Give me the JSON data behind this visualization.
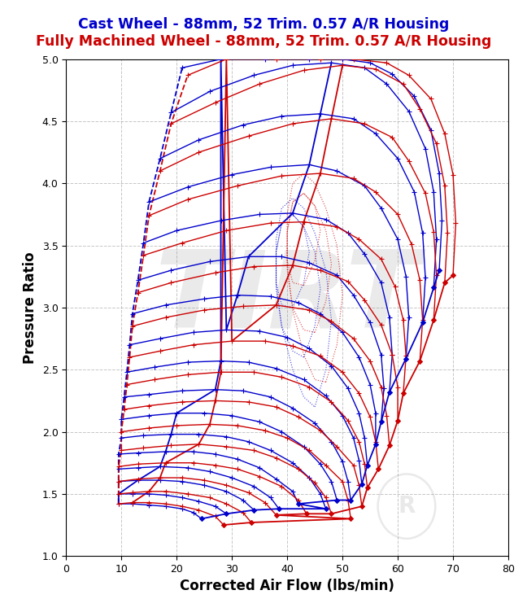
{
  "title_cast": "Cast Wheel - 88mm, 52 Trim. 0.57 A/R Housing",
  "title_billet": "Fully Machined Wheel - 88mm, 52 Trim. 0.57 A/R Housing",
  "xlabel": "Corrected Air Flow (lbs/min)",
  "ylabel": "Pressure Ratio",
  "xlim": [
    0,
    80
  ],
  "ylim": [
    1.0,
    5.0
  ],
  "xticks": [
    0,
    10,
    20,
    30,
    40,
    50,
    60,
    70,
    80
  ],
  "yticks": [
    1.0,
    1.5,
    2.0,
    2.5,
    3.0,
    3.5,
    4.0,
    4.5,
    5.0
  ],
  "cast_color": "#0000cc",
  "billet_color": "#cc0000",
  "background_color": "#ffffff",
  "watermark_color": "#c8c8c8",
  "title_fontsize": 12.5,
  "axis_label_fontsize": 12,
  "cast_speed_lines": [
    [
      [
        9.5,
        1.42
      ],
      [
        12,
        1.42
      ],
      [
        15,
        1.41
      ],
      [
        18,
        1.4
      ],
      [
        21,
        1.38
      ],
      [
        23,
        1.35
      ],
      [
        24.5,
        1.3
      ]
    ],
    [
      [
        9.5,
        1.5
      ],
      [
        12,
        1.5
      ],
      [
        15,
        1.5
      ],
      [
        18,
        1.49
      ],
      [
        21,
        1.47
      ],
      [
        24,
        1.44
      ],
      [
        27,
        1.4
      ],
      [
        29,
        1.34
      ]
    ],
    [
      [
        9.5,
        1.6
      ],
      [
        13,
        1.61
      ],
      [
        17,
        1.61
      ],
      [
        21,
        1.6
      ],
      [
        25,
        1.57
      ],
      [
        29,
        1.52
      ],
      [
        32,
        1.45
      ],
      [
        34,
        1.37
      ]
    ],
    [
      [
        9.5,
        1.7
      ],
      [
        13,
        1.71
      ],
      [
        17,
        1.72
      ],
      [
        22,
        1.71
      ],
      [
        26,
        1.68
      ],
      [
        30,
        1.63
      ],
      [
        34,
        1.56
      ],
      [
        37,
        1.47
      ],
      [
        38.5,
        1.38
      ]
    ],
    [
      [
        9.5,
        1.82
      ],
      [
        13,
        1.83
      ],
      [
        18,
        1.84
      ],
      [
        23,
        1.84
      ],
      [
        27,
        1.82
      ],
      [
        31,
        1.78
      ],
      [
        35,
        1.71
      ],
      [
        38,
        1.62
      ],
      [
        41,
        1.52
      ],
      [
        42,
        1.42
      ]
    ],
    [
      [
        10,
        1.95
      ],
      [
        14,
        1.97
      ],
      [
        19,
        1.98
      ],
      [
        24,
        1.98
      ],
      [
        29,
        1.96
      ],
      [
        33,
        1.92
      ],
      [
        37,
        1.85
      ],
      [
        41,
        1.75
      ],
      [
        44,
        1.63
      ],
      [
        46,
        1.5
      ],
      [
        47,
        1.38
      ]
    ],
    [
      [
        10,
        2.1
      ],
      [
        15,
        2.13
      ],
      [
        20,
        2.15
      ],
      [
        25,
        2.15
      ],
      [
        30,
        2.13
      ],
      [
        35,
        2.08
      ],
      [
        39,
        2.0
      ],
      [
        43,
        1.88
      ],
      [
        46,
        1.74
      ],
      [
        48,
        1.6
      ],
      [
        49,
        1.45
      ]
    ],
    [
      [
        10.5,
        2.28
      ],
      [
        15,
        2.3
      ],
      [
        21,
        2.33
      ],
      [
        27,
        2.34
      ],
      [
        32,
        2.33
      ],
      [
        37,
        2.28
      ],
      [
        41,
        2.19
      ],
      [
        45,
        2.07
      ],
      [
        48,
        1.92
      ],
      [
        50,
        1.76
      ],
      [
        51,
        1.6
      ],
      [
        51.5,
        1.45
      ]
    ],
    [
      [
        11,
        2.48
      ],
      [
        16,
        2.52
      ],
      [
        22,
        2.56
      ],
      [
        28,
        2.57
      ],
      [
        33,
        2.56
      ],
      [
        38,
        2.51
      ],
      [
        43,
        2.42
      ],
      [
        47,
        2.29
      ],
      [
        50,
        2.13
      ],
      [
        52,
        1.95
      ],
      [
        53,
        1.77
      ],
      [
        53.5,
        1.58
      ]
    ],
    [
      [
        11.5,
        2.7
      ],
      [
        17,
        2.75
      ],
      [
        23,
        2.8
      ],
      [
        29,
        2.82
      ],
      [
        35,
        2.81
      ],
      [
        40,
        2.76
      ],
      [
        44,
        2.67
      ],
      [
        48,
        2.53
      ],
      [
        51,
        2.35
      ],
      [
        53,
        2.15
      ],
      [
        54,
        1.95
      ],
      [
        54.5,
        1.73
      ]
    ],
    [
      [
        12,
        2.95
      ],
      [
        18,
        3.02
      ],
      [
        25,
        3.07
      ],
      [
        31,
        3.1
      ],
      [
        37,
        3.09
      ],
      [
        42,
        3.04
      ],
      [
        46,
        2.95
      ],
      [
        50,
        2.8
      ],
      [
        53,
        2.6
      ],
      [
        55,
        2.38
      ],
      [
        56,
        2.15
      ],
      [
        56,
        1.9
      ]
    ],
    [
      [
        13,
        3.22
      ],
      [
        19,
        3.3
      ],
      [
        26,
        3.37
      ],
      [
        33,
        3.41
      ],
      [
        39,
        3.41
      ],
      [
        44,
        3.36
      ],
      [
        49,
        3.26
      ],
      [
        52,
        3.1
      ],
      [
        55,
        2.88
      ],
      [
        57,
        2.62
      ],
      [
        57.5,
        2.35
      ],
      [
        57,
        2.08
      ]
    ],
    [
      [
        14,
        3.52
      ],
      [
        20,
        3.62
      ],
      [
        28,
        3.7
      ],
      [
        35,
        3.75
      ],
      [
        41,
        3.76
      ],
      [
        47,
        3.71
      ],
      [
        51,
        3.6
      ],
      [
        54,
        3.43
      ],
      [
        57,
        3.2
      ],
      [
        58.5,
        2.92
      ],
      [
        59,
        2.62
      ],
      [
        58.5,
        2.32
      ]
    ],
    [
      [
        15,
        3.85
      ],
      [
        22,
        3.97
      ],
      [
        30,
        4.07
      ],
      [
        37,
        4.13
      ],
      [
        44,
        4.15
      ],
      [
        49,
        4.1
      ],
      [
        54,
        3.98
      ],
      [
        57,
        3.8
      ],
      [
        60,
        3.55
      ],
      [
        61.5,
        3.25
      ],
      [
        62,
        2.92
      ],
      [
        61.5,
        2.59
      ]
    ],
    [
      [
        17,
        4.2
      ],
      [
        24,
        4.35
      ],
      [
        32,
        4.47
      ],
      [
        39,
        4.54
      ],
      [
        46,
        4.56
      ],
      [
        52,
        4.52
      ],
      [
        56,
        4.4
      ],
      [
        60,
        4.2
      ],
      [
        63,
        3.93
      ],
      [
        64.5,
        3.6
      ],
      [
        65,
        3.24
      ],
      [
        64.5,
        2.88
      ]
    ],
    [
      [
        19,
        4.57
      ],
      [
        26,
        4.74
      ],
      [
        34,
        4.87
      ],
      [
        41,
        4.95
      ],
      [
        48,
        4.97
      ],
      [
        54,
        4.93
      ],
      [
        58,
        4.8
      ],
      [
        62,
        4.58
      ],
      [
        65,
        4.28
      ],
      [
        66.5,
        3.93
      ],
      [
        67,
        3.55
      ],
      [
        66.5,
        3.16
      ]
    ],
    [
      [
        21,
        4.93
      ],
      [
        28,
        5.0
      ],
      [
        36,
        5.0
      ],
      [
        44,
        5.0
      ],
      [
        50,
        5.0
      ],
      [
        55,
        4.97
      ],
      [
        59,
        4.88
      ],
      [
        63,
        4.7
      ],
      [
        66,
        4.43
      ],
      [
        67.5,
        4.08
      ],
      [
        68,
        3.7
      ],
      [
        67.5,
        3.3
      ]
    ]
  ],
  "billet_speed_lines": [
    [
      [
        9.5,
        1.42
      ],
      [
        12,
        1.43
      ],
      [
        15,
        1.43
      ],
      [
        18,
        1.42
      ],
      [
        21,
        1.4
      ],
      [
        24,
        1.37
      ],
      [
        27,
        1.32
      ],
      [
        28.5,
        1.25
      ]
    ],
    [
      [
        9.5,
        1.5
      ],
      [
        12,
        1.51
      ],
      [
        15,
        1.52
      ],
      [
        18,
        1.52
      ],
      [
        22,
        1.5
      ],
      [
        26,
        1.47
      ],
      [
        29,
        1.42
      ],
      [
        32,
        1.35
      ],
      [
        33.5,
        1.27
      ]
    ],
    [
      [
        9.5,
        1.6
      ],
      [
        13,
        1.62
      ],
      [
        17,
        1.63
      ],
      [
        21,
        1.63
      ],
      [
        25,
        1.61
      ],
      [
        29,
        1.57
      ],
      [
        33,
        1.51
      ],
      [
        36,
        1.43
      ],
      [
        38,
        1.33
      ]
    ],
    [
      [
        9.5,
        1.72
      ],
      [
        13,
        1.74
      ],
      [
        18,
        1.75
      ],
      [
        23,
        1.75
      ],
      [
        27,
        1.73
      ],
      [
        31,
        1.7
      ],
      [
        35,
        1.64
      ],
      [
        39,
        1.56
      ],
      [
        42,
        1.45
      ],
      [
        43.5,
        1.34
      ]
    ],
    [
      [
        10,
        1.85
      ],
      [
        14,
        1.87
      ],
      [
        19,
        1.89
      ],
      [
        24,
        1.9
      ],
      [
        29,
        1.88
      ],
      [
        34,
        1.85
      ],
      [
        38,
        1.79
      ],
      [
        42,
        1.7
      ],
      [
        45,
        1.59
      ],
      [
        47,
        1.47
      ],
      [
        48,
        1.34
      ]
    ],
    [
      [
        10,
        2.0
      ],
      [
        15,
        2.03
      ],
      [
        20,
        2.05
      ],
      [
        26,
        2.06
      ],
      [
        31,
        2.05
      ],
      [
        36,
        2.01
      ],
      [
        40,
        1.95
      ],
      [
        44,
        1.85
      ],
      [
        47,
        1.73
      ],
      [
        50,
        1.6
      ],
      [
        51,
        1.45
      ],
      [
        51.5,
        1.3
      ]
    ],
    [
      [
        10.5,
        2.18
      ],
      [
        15,
        2.21
      ],
      [
        21,
        2.24
      ],
      [
        27,
        2.25
      ],
      [
        33,
        2.24
      ],
      [
        38,
        2.2
      ],
      [
        42,
        2.12
      ],
      [
        46,
        2.01
      ],
      [
        49,
        1.88
      ],
      [
        52,
        1.73
      ],
      [
        53,
        1.57
      ],
      [
        53.5,
        1.4
      ]
    ],
    [
      [
        11,
        2.38
      ],
      [
        16,
        2.42
      ],
      [
        22,
        2.46
      ],
      [
        28,
        2.48
      ],
      [
        34,
        2.48
      ],
      [
        39,
        2.44
      ],
      [
        44,
        2.36
      ],
      [
        48,
        2.24
      ],
      [
        51,
        2.09
      ],
      [
        53,
        1.92
      ],
      [
        54,
        1.74
      ],
      [
        54.5,
        1.55
      ]
    ],
    [
      [
        11.5,
        2.6
      ],
      [
        17,
        2.65
      ],
      [
        23,
        2.7
      ],
      [
        30,
        2.73
      ],
      [
        36,
        2.73
      ],
      [
        41,
        2.69
      ],
      [
        46,
        2.61
      ],
      [
        50,
        2.48
      ],
      [
        53,
        2.31
      ],
      [
        55,
        2.12
      ],
      [
        56,
        1.92
      ],
      [
        56.5,
        1.7
      ]
    ],
    [
      [
        12,
        2.85
      ],
      [
        18,
        2.92
      ],
      [
        25,
        2.98
      ],
      [
        32,
        3.01
      ],
      [
        38,
        3.02
      ],
      [
        44,
        2.98
      ],
      [
        48,
        2.89
      ],
      [
        52,
        2.75
      ],
      [
        55,
        2.57
      ],
      [
        57,
        2.36
      ],
      [
        58,
        2.13
      ],
      [
        58.5,
        1.89
      ]
    ],
    [
      [
        13,
        3.12
      ],
      [
        19,
        3.2
      ],
      [
        27,
        3.28
      ],
      [
        34,
        3.33
      ],
      [
        41,
        3.34
      ],
      [
        46,
        3.3
      ],
      [
        51,
        3.21
      ],
      [
        54,
        3.06
      ],
      [
        57,
        2.86
      ],
      [
        59,
        2.62
      ],
      [
        60,
        2.36
      ],
      [
        60,
        2.09
      ]
    ],
    [
      [
        14,
        3.42
      ],
      [
        21,
        3.52
      ],
      [
        29,
        3.62
      ],
      [
        37,
        3.68
      ],
      [
        43,
        3.69
      ],
      [
        49,
        3.65
      ],
      [
        53,
        3.55
      ],
      [
        57,
        3.39
      ],
      [
        59.5,
        3.17
      ],
      [
        61,
        2.9
      ],
      [
        61.5,
        2.61
      ],
      [
        61,
        2.31
      ]
    ],
    [
      [
        15,
        3.74
      ],
      [
        22,
        3.87
      ],
      [
        31,
        3.98
      ],
      [
        39,
        4.06
      ],
      [
        46,
        4.08
      ],
      [
        52,
        4.04
      ],
      [
        56,
        3.93
      ],
      [
        60,
        3.75
      ],
      [
        62.5,
        3.51
      ],
      [
        64,
        3.22
      ],
      [
        64.5,
        2.9
      ],
      [
        64,
        2.57
      ]
    ],
    [
      [
        17,
        4.1
      ],
      [
        24,
        4.25
      ],
      [
        33,
        4.38
      ],
      [
        41,
        4.48
      ],
      [
        48,
        4.52
      ],
      [
        54,
        4.48
      ],
      [
        59,
        4.37
      ],
      [
        62,
        4.18
      ],
      [
        65,
        3.92
      ],
      [
        66.5,
        3.61
      ],
      [
        67,
        3.26
      ],
      [
        66.5,
        2.9
      ]
    ],
    [
      [
        19,
        4.48
      ],
      [
        27,
        4.65
      ],
      [
        35,
        4.8
      ],
      [
        43,
        4.91
      ],
      [
        50,
        4.95
      ],
      [
        56,
        4.92
      ],
      [
        61,
        4.8
      ],
      [
        64,
        4.6
      ],
      [
        67,
        4.32
      ],
      [
        68.5,
        3.98
      ],
      [
        69,
        3.6
      ],
      [
        68.5,
        3.2
      ]
    ],
    [
      [
        22,
        4.87
      ],
      [
        29,
        5.0
      ],
      [
        38,
        5.0
      ],
      [
        46,
        5.0
      ],
      [
        52,
        5.0
      ],
      [
        58,
        4.97
      ],
      [
        62,
        4.87
      ],
      [
        66,
        4.68
      ],
      [
        68.5,
        4.4
      ],
      [
        70,
        4.07
      ],
      [
        70.5,
        3.68
      ],
      [
        70,
        3.26
      ]
    ]
  ],
  "cast_eff_islands": [
    [
      [
        45,
        2.2
      ],
      [
        47,
        2.5
      ],
      [
        48,
        2.9
      ],
      [
        47,
        3.3
      ],
      [
        45,
        3.6
      ],
      [
        43,
        3.8
      ],
      [
        41,
        3.88
      ],
      [
        39,
        3.8
      ],
      [
        38,
        3.55
      ],
      [
        38,
        3.2
      ],
      [
        39,
        2.85
      ],
      [
        41,
        2.5
      ],
      [
        43,
        2.28
      ],
      [
        45,
        2.2
      ]
    ],
    [
      [
        43,
        2.6
      ],
      [
        45,
        2.85
      ],
      [
        46,
        3.15
      ],
      [
        45,
        3.45
      ],
      [
        43,
        3.65
      ],
      [
        41,
        3.75
      ],
      [
        39,
        3.68
      ],
      [
        38,
        3.45
      ],
      [
        38,
        3.15
      ],
      [
        39,
        2.85
      ],
      [
        41,
        2.65
      ],
      [
        43,
        2.6
      ]
    ],
    [
      [
        41,
        3.0
      ],
      [
        43,
        3.2
      ],
      [
        44,
        3.45
      ],
      [
        43,
        3.65
      ],
      [
        41,
        3.75
      ],
      [
        39,
        3.68
      ],
      [
        38,
        3.45
      ],
      [
        38,
        3.2
      ],
      [
        39,
        3.02
      ],
      [
        41,
        3.0
      ]
    ]
  ],
  "billet_eff_islands": [
    [
      [
        47,
        2.4
      ],
      [
        49,
        2.7
      ],
      [
        50,
        3.1
      ],
      [
        49,
        3.5
      ],
      [
        47,
        3.8
      ],
      [
        45,
        4.0
      ],
      [
        43,
        4.08
      ],
      [
        41,
        4.0
      ],
      [
        40,
        3.75
      ],
      [
        40,
        3.35
      ],
      [
        41,
        2.98
      ],
      [
        43,
        2.62
      ],
      [
        45,
        2.42
      ],
      [
        47,
        2.4
      ]
    ],
    [
      [
        45,
        2.8
      ],
      [
        47,
        3.05
      ],
      [
        48,
        3.35
      ],
      [
        47,
        3.62
      ],
      [
        45,
        3.82
      ],
      [
        43,
        3.92
      ],
      [
        41,
        3.85
      ],
      [
        40,
        3.6
      ],
      [
        40,
        3.3
      ],
      [
        41,
        3.0
      ],
      [
        43,
        2.82
      ],
      [
        45,
        2.8
      ]
    ],
    [
      [
        43,
        3.18
      ],
      [
        45,
        3.38
      ],
      [
        46,
        3.62
      ],
      [
        45,
        3.82
      ],
      [
        43,
        3.92
      ],
      [
        41,
        3.85
      ],
      [
        40,
        3.62
      ],
      [
        40,
        3.38
      ],
      [
        41,
        3.2
      ],
      [
        43,
        3.18
      ]
    ]
  ]
}
